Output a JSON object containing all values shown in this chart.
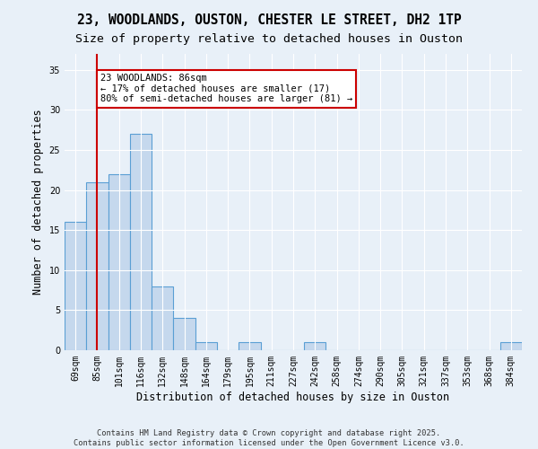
{
  "title1": "23, WOODLANDS, OUSTON, CHESTER LE STREET, DH2 1TP",
  "title2": "Size of property relative to detached houses in Ouston",
  "xlabel": "Distribution of detached houses by size in Ouston",
  "ylabel": "Number of detached properties",
  "categories": [
    "69sqm",
    "85sqm",
    "101sqm",
    "116sqm",
    "132sqm",
    "148sqm",
    "164sqm",
    "179sqm",
    "195sqm",
    "211sqm",
    "227sqm",
    "242sqm",
    "258sqm",
    "274sqm",
    "290sqm",
    "305sqm",
    "321sqm",
    "337sqm",
    "353sqm",
    "368sqm",
    "384sqm"
  ],
  "values": [
    16,
    21,
    22,
    27,
    8,
    4,
    1,
    0,
    1,
    0,
    0,
    1,
    0,
    0,
    0,
    0,
    0,
    0,
    0,
    0,
    1
  ],
  "bar_color": "#c5d8ed",
  "bar_edge_color": "#5a9fd4",
  "bar_edge_width": 0.8,
  "vline_x": 1,
  "vline_color": "#cc0000",
  "annotation_text": "23 WOODLANDS: 86sqm\n← 17% of detached houses are smaller (17)\n80% of semi-detached houses are larger (81) →",
  "annotation_box_color": "#cc0000",
  "ylim": [
    0,
    37
  ],
  "yticks": [
    0,
    5,
    10,
    15,
    20,
    25,
    30,
    35
  ],
  "bg_color": "#e8f0f8",
  "plot_bg_color": "#e8f0f8",
  "footer1": "Contains HM Land Registry data © Crown copyright and database right 2025.",
  "footer2": "Contains public sector information licensed under the Open Government Licence v3.0.",
  "title_fontsize": 10.5,
  "subtitle_fontsize": 9.5,
  "axis_label_fontsize": 8.5,
  "tick_fontsize": 7,
  "annot_fontsize": 7.5
}
